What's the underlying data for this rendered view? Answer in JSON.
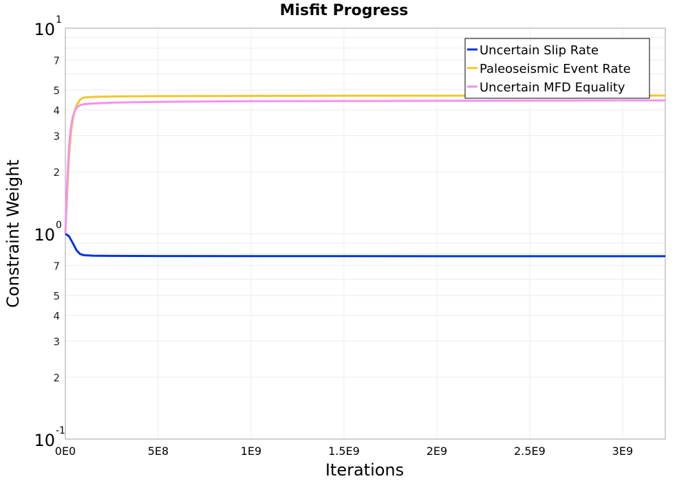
{
  "chart_data": {
    "type": "line",
    "title": "Misfit Progress",
    "xlabel": "Iterations",
    "ylabel": "Constraint Weight",
    "xscale": "linear",
    "yscale": "log",
    "xlim": [
      0,
      3230000000
    ],
    "ylim": [
      0.1,
      10
    ],
    "grid": true,
    "legend_position": "upper right",
    "x_ticks": [
      {
        "value": 0,
        "label": "0E0"
      },
      {
        "value": 500000000,
        "label": "5E8"
      },
      {
        "value": 1000000000,
        "label": "1E9"
      },
      {
        "value": 1500000000,
        "label": "1.5E9"
      },
      {
        "value": 2000000000,
        "label": "2E9"
      },
      {
        "value": 2500000000,
        "label": "2.5E9"
      },
      {
        "value": 3000000000,
        "label": "3E9"
      }
    ],
    "y_major_ticks": [
      {
        "value": 10,
        "base": "10",
        "exp": "1"
      },
      {
        "value": 1,
        "base": "10",
        "exp": "0"
      },
      {
        "value": 0.1,
        "base": "10",
        "exp": "-1"
      }
    ],
    "y_minor_labels": [
      {
        "value": 7,
        "label": "7"
      },
      {
        "value": 5,
        "label": "5"
      },
      {
        "value": 4,
        "label": "4"
      },
      {
        "value": 3,
        "label": "3"
      },
      {
        "value": 2,
        "label": "2"
      },
      {
        "value": 0.7,
        "label": "7"
      },
      {
        "value": 0.5,
        "label": "5"
      },
      {
        "value": 0.4,
        "label": "4"
      },
      {
        "value": 0.3,
        "label": "3"
      },
      {
        "value": 0.2,
        "label": "2"
      }
    ],
    "y_minor_gridlines": [
      8,
      9,
      6,
      0.8,
      0.9,
      0.6
    ],
    "series": [
      {
        "name": "Uncertain Slip Rate",
        "color": "#0033dd",
        "x": [
          0,
          20000000,
          40000000,
          60000000,
          80000000,
          100000000,
          150000000,
          250000000,
          500000000,
          1000000000,
          1500000000,
          2000000000,
          2500000000,
          3000000000,
          3230000000
        ],
        "y": [
          1.0,
          0.97,
          0.9,
          0.83,
          0.795,
          0.785,
          0.781,
          0.779,
          0.778,
          0.777,
          0.777,
          0.776,
          0.776,
          0.776,
          0.776
        ]
      },
      {
        "name": "Paleoseismic Event Rate",
        "color": "#f2c62a",
        "x": [
          0,
          10000000,
          20000000,
          30000000,
          40000000,
          50000000,
          60000000,
          80000000,
          100000000,
          150000000,
          250000000,
          500000000,
          1000000000,
          1500000000,
          2000000000,
          2500000000,
          3000000000,
          3230000000
        ],
        "y": [
          1.0,
          1.6,
          2.4,
          3.1,
          3.6,
          3.95,
          4.2,
          4.5,
          4.6,
          4.63,
          4.65,
          4.67,
          4.68,
          4.69,
          4.69,
          4.7,
          4.7,
          4.7
        ]
      },
      {
        "name": "Uncertain MFD Equality",
        "color": "#f890f0",
        "x": [
          0,
          10000000,
          20000000,
          30000000,
          40000000,
          50000000,
          60000000,
          80000000,
          100000000,
          150000000,
          250000000,
          500000000,
          1000000000,
          1500000000,
          2000000000,
          2500000000,
          3000000000,
          3230000000
        ],
        "y": [
          1.0,
          1.8,
          2.7,
          3.3,
          3.7,
          3.95,
          4.1,
          4.22,
          4.27,
          4.3,
          4.34,
          4.38,
          4.41,
          4.42,
          4.43,
          4.44,
          4.45,
          4.45
        ]
      }
    ]
  },
  "legend": {
    "items": [
      {
        "label": "Uncertain Slip Rate",
        "color": "#0033dd"
      },
      {
        "label": "Paleoseismic Event Rate",
        "color": "#f2c62a"
      },
      {
        "label": "Uncertain MFD Equality",
        "color": "#f890f0"
      }
    ]
  },
  "colors": {
    "grid": "#ebebeb",
    "axis": "#a0a0a0",
    "background": "#ffffff"
  }
}
